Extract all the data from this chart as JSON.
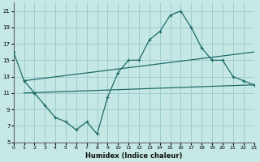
{
  "xlabel": "Humidex (Indice chaleur)",
  "bg_color": "#c5e8e5",
  "grid_color": "#9ecece",
  "line_color": "#1e6b68",
  "xlim": [
    0,
    23
  ],
  "ylim": [
    5,
    22
  ],
  "yticks": [
    5,
    7,
    9,
    11,
    13,
    15,
    17,
    19,
    21
  ],
  "xticks": [
    0,
    1,
    2,
    3,
    4,
    5,
    6,
    7,
    8,
    9,
    10,
    11,
    12,
    13,
    14,
    15,
    16,
    17,
    18,
    19,
    20,
    21,
    22,
    23
  ],
  "curve_x": [
    0,
    1,
    2,
    3,
    4,
    5,
    6,
    7,
    8,
    9,
    10,
    11,
    12,
    13,
    14,
    15,
    16,
    17,
    18,
    19,
    20,
    21,
    22,
    23
  ],
  "curve_y": [
    16.0,
    12.5,
    11.0,
    9.5,
    8.0,
    7.5,
    6.5,
    7.5,
    6.0,
    10.5,
    13.5,
    15.0,
    15.0,
    17.5,
    18.5,
    20.5,
    21.0,
    19.0,
    16.5,
    15.0,
    15.0,
    13.0,
    12.5,
    12.0
  ],
  "upper_line_x": [
    1,
    23
  ],
  "upper_line_y": [
    12.5,
    16.0
  ],
  "lower_line_x": [
    1,
    23
  ],
  "lower_line_y": [
    11.0,
    12.0
  ]
}
